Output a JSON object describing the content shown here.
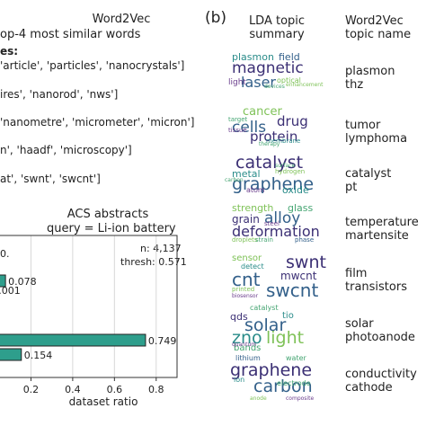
{
  "left_panel": {
    "header_line1": "Word2Vec",
    "header_line2": "op-4 most similar words",
    "label_fragment": "es:",
    "rows": [
      "'article', 'particles', 'nanocrystals']",
      "ires', 'nanorod', 'nws']",
      "'nanometre', 'micrometer', 'micron']",
      "n', 'haadf', 'microscopy']",
      "at', 'swnt', 'swcnt']"
    ]
  },
  "panel_b_label": "(b)",
  "right_panel": {
    "col1_title_line1": "LDA topic",
    "col1_title_line2": "summary",
    "col2_title_line1": "Word2Vec",
    "col2_title_line2": "topic name",
    "topics": [
      {
        "name_line1": "plasmon",
        "name_line2": "thz",
        "words": [
          "plasmon",
          "field",
          "magnetic",
          "optical",
          "laser",
          "light",
          "devices",
          "enhancement"
        ]
      },
      {
        "name_line1": "tumor",
        "name_line2": "lymphoma",
        "words": [
          "cancer",
          "drug",
          "cells",
          "protein",
          "target",
          "tissue",
          "membrane",
          "therapy"
        ]
      },
      {
        "name_line1": "catalyst",
        "name_line2": "pt",
        "words": [
          "catalyst",
          "metal",
          "hydrogen",
          "graphene",
          "oxide",
          "atom",
          "carbon",
          "surface"
        ]
      },
      {
        "name_line1": "temperature",
        "name_line2": "martensite",
        "words": [
          "strength",
          "glass",
          "grain",
          "alloy",
          "deformation",
          "steel",
          "droplets",
          "strain",
          "phase"
        ]
      },
      {
        "name_line1": "film",
        "name_line2": "transistors",
        "words": [
          "sensor",
          "swnt",
          "detect",
          "cnt",
          "mwcnt",
          "swcnt",
          "printed",
          "biosensor"
        ]
      },
      {
        "name_line1": "solar",
        "name_line2": "photoanode",
        "words": [
          "catalyst",
          "qds",
          "tio",
          "solar",
          "zno",
          "light",
          "bands",
          "quantum"
        ]
      },
      {
        "name_line1": "conductivity",
        "name_line2": "cathode",
        "words": [
          "lithium",
          "water",
          "graphene",
          "carbon",
          "ion",
          "electrode",
          "anode",
          "composite"
        ]
      }
    ]
  },
  "chart_data": {
    "type": "bar",
    "orientation": "horizontal",
    "title": "ACS abstracts",
    "subtitle": "query = Li-ion battery",
    "xlabel": "dataset ratio",
    "xlim": [
      0,
      0.9
    ],
    "xticks": [
      "0.2",
      "0.4",
      "0.6",
      "0.8"
    ],
    "xtick_values": [
      0.2,
      0.4,
      0.6,
      0.8
    ],
    "annotations": [
      "n: 4,137",
      "thresh: 0.571"
    ],
    "partial_label": "0.",
    "groups": [
      {
        "values": [
          0.078,
          0.001
        ],
        "labels": [
          "0.078",
          "0.001"
        ]
      },
      {
        "values": [
          0.749,
          0.154
        ],
        "labels": [
          "0.749",
          "0.154"
        ]
      }
    ],
    "bar_color": "#2e9e8c",
    "grid": true
  }
}
